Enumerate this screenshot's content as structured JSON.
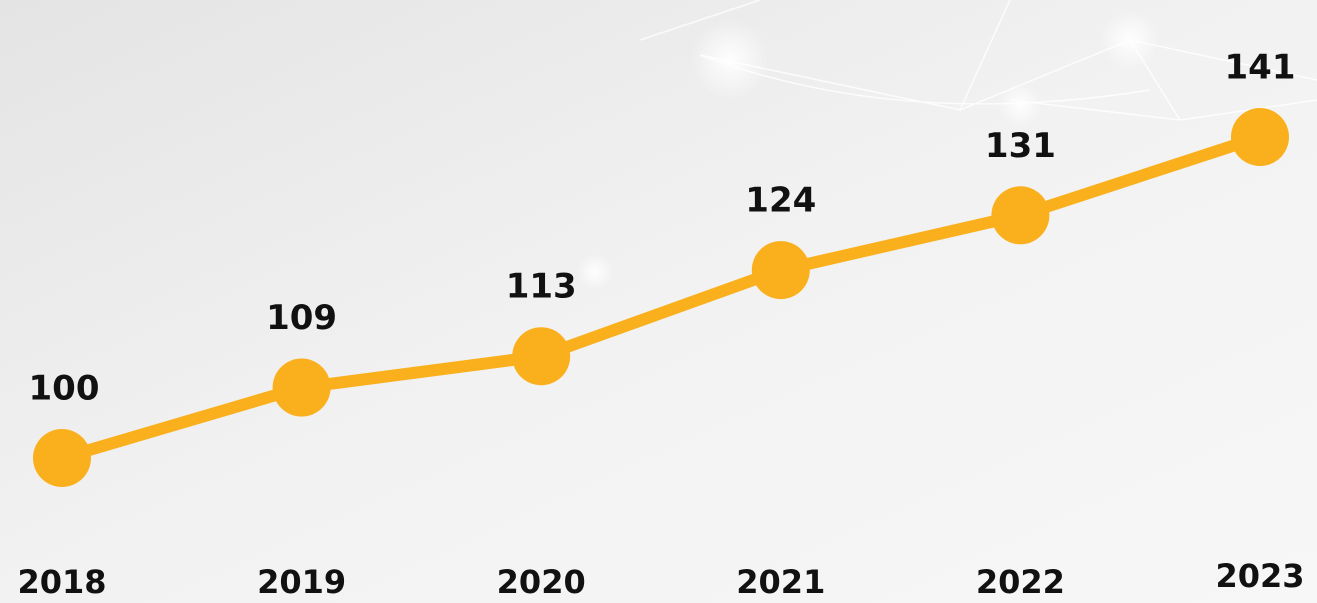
{
  "chart_data": {
    "type": "line",
    "categories": [
      "2018",
      "2019",
      "2020",
      "2021",
      "2022",
      "2023"
    ],
    "values": [
      100,
      109,
      113,
      124,
      131,
      141
    ],
    "color": "#f9b01c"
  }
}
